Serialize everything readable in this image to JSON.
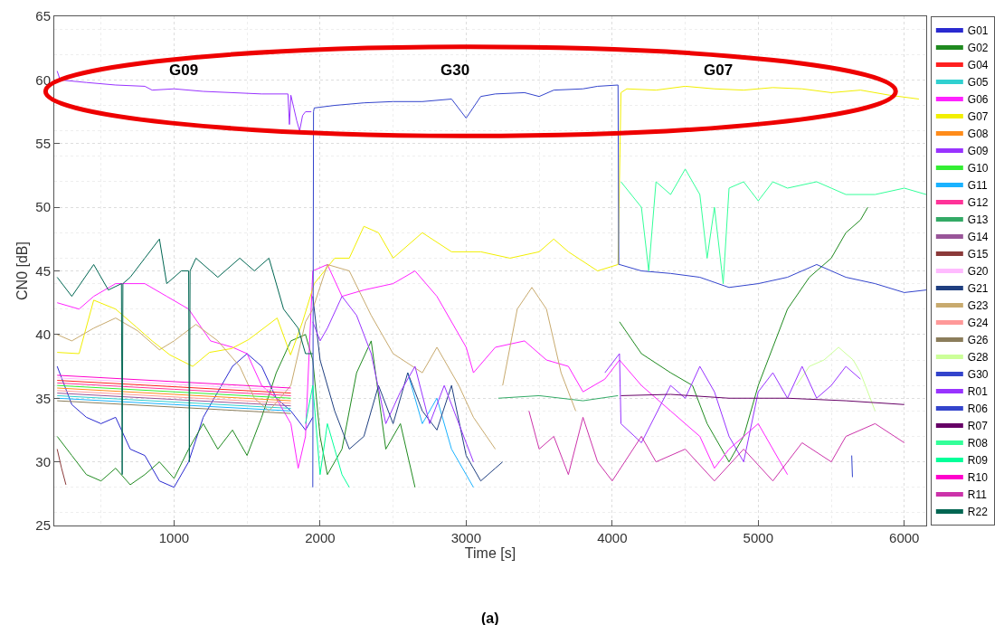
{
  "chart_data": {
    "type": "line",
    "xlabel": "Time [s]",
    "ylabel": "CN0 [dB]",
    "xlim": [
      180,
      6150
    ],
    "ylim": [
      25,
      65
    ],
    "xticks": [
      1000,
      2000,
      3000,
      4000,
      5000,
      6000
    ],
    "yticks": [
      25,
      30,
      35,
      40,
      45,
      50,
      55,
      60,
      65
    ],
    "grid": true,
    "legend": "right",
    "marker": "none",
    "line_style": "solid",
    "annotations": [
      "G09",
      "G30",
      "G07",
      "(a)"
    ],
    "series": [
      {
        "name": "G01",
        "color": "#2a2ad0",
        "x": [
          200,
          300,
          400,
          500,
          600,
          700,
          800,
          900,
          1000,
          1100,
          1200,
          1300,
          1400,
          1500,
          1600,
          1700,
          1800,
          1900,
          1950
        ],
        "values": [
          37.5,
          34.5,
          33.5,
          33,
          33.5,
          31,
          30.5,
          28.5,
          28,
          30,
          33.5,
          35.5,
          37.5,
          38.5,
          37.5,
          35,
          34,
          32.5,
          33.5
        ]
      },
      {
        "name": "G02",
        "color": "#1f8a1f",
        "x": [
          200,
          300,
          400,
          500,
          600,
          700,
          800,
          900,
          1000,
          1100,
          1200,
          1300,
          1400,
          1500,
          1600,
          1700,
          1800,
          1900,
          1950,
          2000,
          2050,
          2150,
          2250,
          2350,
          2450,
          2550,
          2650,
          2700,
          4050,
          4200,
          4400,
          4550,
          4650,
          4800,
          4900,
          5000,
          5100,
          5200,
          5350,
          5500,
          5600,
          5700,
          5750
        ],
        "values": [
          32,
          30.5,
          29,
          28.5,
          29.5,
          28.2,
          29,
          30,
          28.7,
          31,
          33,
          31,
          32.5,
          30.5,
          33.5,
          37,
          39.5,
          40,
          38,
          32,
          29,
          31,
          37,
          39.5,
          31,
          33,
          28,
          null,
          41,
          38.5,
          37,
          36,
          33,
          30,
          32,
          36,
          39,
          42,
          44.5,
          46,
          48,
          49,
          50
        ]
      },
      {
        "name": "G04",
        "color": "#ff2020",
        "x": [
          200,
          1000,
          1800
        ],
        "values": [
          36.4,
          35.9,
          35.4
        ]
      },
      {
        "name": "G05",
        "color": "#30d0d0",
        "x": [
          200,
          1000,
          1800
        ],
        "values": [
          35.2,
          34.7,
          34.2
        ]
      },
      {
        "name": "G06",
        "color": "#ff22ff",
        "x": [
          200,
          350,
          450,
          600,
          800,
          950,
          1100,
          1250,
          1400,
          1500,
          1600,
          1700,
          1800,
          1850,
          1900,
          1950,
          2050,
          2150,
          2300,
          2500,
          2650,
          2800,
          3000,
          3050,
          3200,
          3400,
          3550,
          3700,
          3800,
          3950,
          4050,
          4200,
          4400,
          4600,
          4700,
          4800,
          5000,
          5200
        ],
        "values": [
          42.5,
          42,
          43,
          44,
          44,
          43,
          42,
          39.5,
          39,
          38.5,
          36,
          35,
          33,
          29.5,
          32,
          45,
          45.5,
          43,
          43.5,
          44,
          45,
          43,
          39,
          37,
          39,
          39.5,
          38,
          37.5,
          35.5,
          36.5,
          38,
          36,
          34,
          32,
          29.5,
          31,
          33,
          29
        ]
      },
      {
        "name": "G07",
        "color": "#f2ef00",
        "x": [
          200,
          350,
          450,
          600,
          741,
          850,
          972,
          1128,
          1243,
          1394,
          1510,
          1706,
          1798,
          1880,
          1960,
          2100,
          2200,
          2300,
          2400,
          2500,
          2700,
          2900,
          3100,
          3300,
          3500,
          3600,
          3700,
          3900,
          4040,
          4060,
          4100,
          4300,
          4500,
          4700,
          4900,
          5100,
          5300,
          5500,
          5700,
          5900,
          6100
        ],
        "values": [
          38.6,
          38.5,
          42.7,
          42,
          40.6,
          39.5,
          38.4,
          37.5,
          38.6,
          38.9,
          39.6,
          41.3,
          38.4,
          41,
          44,
          46,
          46,
          48.5,
          48,
          46,
          48,
          46.5,
          46.5,
          46,
          46.5,
          47.5,
          46.5,
          45,
          45.5,
          59,
          59.3,
          59.2,
          59.5,
          59.3,
          59.2,
          59.4,
          59.3,
          59,
          59.2,
          58.8,
          58.5
        ]
      },
      {
        "name": "G08",
        "color": "#ff8c1a",
        "x": [
          200,
          1000,
          1800
        ],
        "values": [
          35.8,
          35.3,
          34.8
        ]
      },
      {
        "name": "G09",
        "color": "#9933ff",
        "x": [
          200,
          220,
          400,
          600,
          800,
          850,
          1000,
          1200,
          1400,
          1600,
          1780,
          1790,
          1800,
          1820,
          1840,
          1860,
          1880,
          1900,
          1940
        ],
        "values": [
          60.7,
          60,
          59.8,
          59.6,
          59.5,
          59.2,
          59.3,
          59.1,
          59,
          58.9,
          58.9,
          56.5,
          58.8,
          57.8,
          56.8,
          56,
          57.2,
          57.5,
          57.5
        ]
      },
      {
        "name": "G10",
        "color": "#33ee33",
        "x": [
          200,
          1000,
          1800
        ],
        "values": [
          36.0,
          35.5,
          35.0
        ]
      },
      {
        "name": "G11",
        "color": "#1ab2ff",
        "x": [
          200,
          1000,
          1800,
          null,
          2600,
          2700,
          2800,
          2900,
          3000,
          3050
        ],
        "values": [
          35.0,
          34.5,
          34.0,
          null,
          37,
          33,
          35,
          31,
          29,
          28
        ]
      },
      {
        "name": "G12",
        "color": "#ff3399",
        "x": [
          200,
          1000,
          1800
        ],
        "values": [
          36.2,
          35.7,
          35.2
        ]
      },
      {
        "name": "G13",
        "color": "#33aa66",
        "x": [
          3220,
          3500,
          3800,
          4040
        ],
        "values": [
          35,
          35.2,
          34.8,
          35.2
        ]
      },
      {
        "name": "G14",
        "color": "#995599",
        "x": [
          200,
          1000,
          1800
        ],
        "values": [
          35.4,
          34.9,
          34.4
        ]
      },
      {
        "name": "G15",
        "color": "#8b3a3a",
        "x": [
          200,
          230,
          260
        ],
        "values": [
          31,
          29.5,
          28.2
        ]
      },
      {
        "name": "G20",
        "color": "#ffbbff",
        "x": [
          200,
          1000,
          1800
        ],
        "values": [
          36.6,
          36.1,
          35.6
        ]
      },
      {
        "name": "G21",
        "color": "#1f3f80",
        "x": [
          1950,
          2000,
          2100,
          2200,
          2300,
          2400,
          2500,
          2600,
          2700,
          2800,
          2900,
          3000,
          3100,
          3200,
          3250
        ],
        "values": [
          43,
          38,
          34,
          31,
          32,
          36,
          33,
          37,
          34,
          32.5,
          36,
          30.5,
          28.5,
          29.5,
          30
        ]
      },
      {
        "name": "G23",
        "color": "#c8aa6e",
        "x": [
          200,
          300,
          450,
          600,
          750,
          900,
          1000,
          1150,
          1300,
          1450,
          1550,
          1650,
          1800,
          1900,
          1950,
          2050,
          2200,
          2350,
          2500,
          2700,
          2800,
          2950,
          3050,
          3200,
          3220,
          3250,
          3350,
          3450,
          3550,
          3650,
          3750
        ],
        "values": [
          40,
          39.5,
          40.5,
          41.3,
          40.3,
          38.8,
          39.5,
          40.8,
          39.5,
          37.5,
          35,
          34,
          36,
          41,
          42,
          45.5,
          45,
          41.5,
          38.5,
          37,
          39,
          36,
          33.5,
          31,
          null,
          36,
          42,
          43.7,
          42,
          37,
          34
        ]
      },
      {
        "name": "G24",
        "color": "#ff9999",
        "x": [
          200,
          1000,
          1800
        ],
        "values": [
          35.6,
          35.1,
          34.6
        ]
      },
      {
        "name": "G26",
        "color": "#8b7d5b",
        "x": [
          200,
          1000,
          1800
        ],
        "values": [
          34.8,
          34.3,
          33.8
        ]
      },
      {
        "name": "G28",
        "color": "#ccff99",
        "x": [
          5260,
          5350,
          5450,
          5550,
          5650,
          5700,
          5800
        ],
        "values": [
          36,
          37.5,
          38,
          39,
          38,
          37,
          34
        ]
      },
      {
        "name": "G30",
        "color": "#3344cc",
        "x": [
          1950,
          1955,
          1960,
          2100,
          2300,
          2500,
          2700,
          2900,
          3000,
          3100,
          3200,
          3400,
          3500,
          3600,
          3800,
          3900,
          4040,
          4045,
          4050,
          4200,
          4400,
          4600,
          4800,
          5000,
          5200,
          5400,
          5600,
          5800,
          6000,
          6150
        ],
        "values": [
          28,
          57.5,
          57.8,
          58,
          58.2,
          58.3,
          58.3,
          58.5,
          57,
          58.7,
          58.9,
          59,
          58.7,
          59.2,
          59.3,
          59.5,
          59.6,
          45.5,
          45.5,
          45,
          44.8,
          44.5,
          43.7,
          44,
          44.5,
          45.5,
          44.5,
          44,
          43.3,
          43.5
        ]
      },
      {
        "name": "R01",
        "color": "#9933ff",
        "x": [
          1950,
          2000,
          2050,
          2150,
          2250,
          2350,
          2450,
          2550,
          2650,
          2750,
          2850,
          2950,
          3050,
          3100,
          3950,
          4050,
          4060,
          4200,
          4400,
          4500,
          4600,
          4700,
          4800,
          4900,
          5000,
          5100,
          5200,
          5300,
          5400,
          5500,
          5600,
          5700
        ],
        "values": [
          41,
          39.5,
          40.5,
          43,
          41.5,
          38.5,
          33,
          35.5,
          37.5,
          33,
          36,
          33,
          30,
          null,
          37,
          38.5,
          33,
          31.5,
          36,
          35,
          37.5,
          35.5,
          32,
          30,
          35.5,
          37,
          35,
          37.5,
          35,
          36,
          37.5,
          36.5
        ]
      },
      {
        "name": "R06",
        "color": "#3344cc",
        "x": [
          5640,
          5645
        ],
        "values": [
          30.5,
          28.8
        ]
      },
      {
        "name": "R07",
        "color": "#660066",
        "x": [
          4060,
          4400,
          4800,
          5200,
          5600,
          6000
        ],
        "values": [
          35.2,
          35.3,
          35,
          35,
          34.8,
          34.5
        ]
      },
      {
        "name": "R08",
        "color": "#33ff99",
        "x": [
          4060,
          4200,
          4250,
          4300,
          4400,
          4500,
          4600,
          4650,
          4700,
          4760,
          4800,
          4900,
          5000,
          5100,
          5200,
          5400,
          5600,
          5800,
          6000,
          6150
        ],
        "values": [
          52,
          50,
          45,
          52,
          51,
          53,
          51,
          46,
          50,
          44,
          51.5,
          52,
          50.5,
          52,
          51.5,
          52,
          51,
          51,
          51.5,
          51
        ]
      },
      {
        "name": "R09",
        "color": "#00ff99",
        "x": [
          1900,
          1950,
          2000,
          2050,
          2100,
          2150,
          2200
        ],
        "values": [
          33,
          36,
          29,
          33,
          31,
          29,
          28
        ]
      },
      {
        "name": "R10",
        "color": "#ff00cc",
        "x": [
          200,
          1000,
          1800
        ],
        "values": [
          36.8,
          36.3,
          35.8
        ]
      },
      {
        "name": "R11",
        "color": "#cc33aa",
        "x": [
          3430,
          3500,
          3600,
          3700,
          3800,
          3900,
          4000,
          4200,
          4300,
          4500,
          4700,
          4900,
          5100,
          5300,
          5500,
          5600,
          5800,
          6000
        ],
        "values": [
          34,
          31,
          32,
          29,
          33.5,
          30,
          28.5,
          32,
          30,
          31,
          28.5,
          31,
          28.5,
          31.5,
          30,
          32,
          33,
          31.5
        ]
      },
      {
        "name": "R22",
        "color": "#006652",
        "x": [
          200,
          300,
          450,
          550,
          640,
          645,
          650,
          700,
          800,
          900,
          950,
          1050,
          1100,
          1105,
          1110,
          1150,
          1300,
          1450,
          1550,
          1650,
          1750,
          1850,
          1900,
          1950
        ],
        "values": [
          44.5,
          43,
          45.5,
          43.5,
          44,
          29,
          44,
          44.5,
          46,
          47.5,
          44,
          45,
          45,
          30,
          45,
          46,
          44.5,
          46,
          45,
          46,
          42,
          40.5,
          38.5,
          38.5
        ]
      }
    ]
  }
}
